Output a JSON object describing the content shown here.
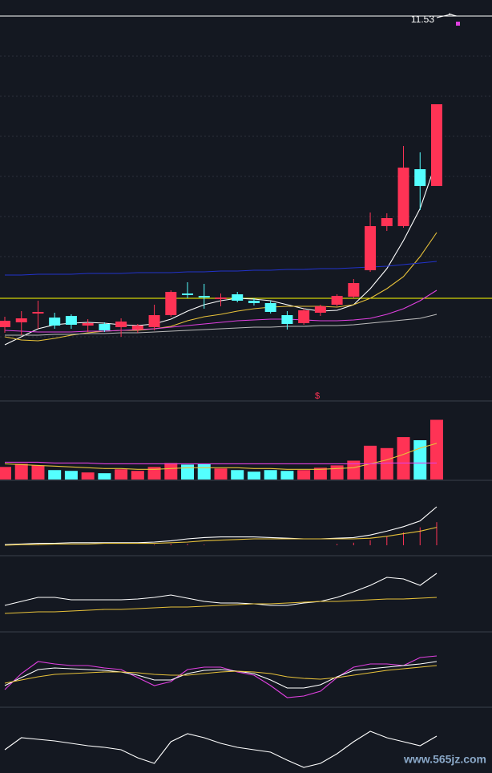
{
  "chart_data": [
    {
      "type": "candlestick",
      "open": [
        7.65,
        7.71,
        7.82,
        7.77,
        7.79,
        7.67,
        7.69,
        7.65,
        7.62,
        7.65,
        7.8,
        8.07,
        8.04,
        8.0,
        8.06,
        7.98,
        7.95,
        7.8,
        7.7,
        7.83,
        7.93,
        8.03,
        8.36,
        8.91,
        8.91,
        9.62,
        9.41
      ],
      "close": [
        7.73,
        7.76,
        7.84,
        7.67,
        7.68,
        7.7,
        7.61,
        7.72,
        7.67,
        7.8,
        8.09,
        8.05,
        8.02,
        8.02,
        7.98,
        7.95,
        7.84,
        7.69,
        7.86,
        7.91,
        8.04,
        8.2,
        8.91,
        9.01,
        9.64,
        9.41,
        10.43
      ],
      "high": [
        7.78,
        7.85,
        7.98,
        7.83,
        7.81,
        7.75,
        7.71,
        7.76,
        7.69,
        7.93,
        8.11,
        8.21,
        8.19,
        8.07,
        8.09,
        8.01,
        7.98,
        7.85,
        7.88,
        7.93,
        8.06,
        8.25,
        9.08,
        9.07,
        9.91,
        9.83,
        10.43
      ],
      "low": [
        7.58,
        7.55,
        7.63,
        7.63,
        7.63,
        7.59,
        7.59,
        7.53,
        7.58,
        7.61,
        7.78,
        8.01,
        7.88,
        7.91,
        7.96,
        7.92,
        7.82,
        7.62,
        7.68,
        7.79,
        7.91,
        8.01,
        8.34,
        8.85,
        8.89,
        9.11,
        9.41
      ],
      "up_color": "#ff3355",
      "down_color": "#54ffff",
      "ylim": [
        6.73,
        11.73
      ],
      "series": [
        {
          "color": "#ffffff",
          "values": [
            7.43,
            7.53,
            7.63,
            7.68,
            7.7,
            7.71,
            7.7,
            7.68,
            7.67,
            7.69,
            7.75,
            7.85,
            7.93,
            7.98,
            8.01,
            8.0,
            7.98,
            7.93,
            7.88,
            7.85,
            7.86,
            7.93,
            8.13,
            8.38,
            8.73,
            9.13,
            9.73
          ]
        },
        {
          "color": "#e8c23a",
          "values": [
            7.53,
            7.49,
            7.48,
            7.51,
            7.55,
            7.58,
            7.6,
            7.61,
            7.61,
            7.63,
            7.66,
            7.73,
            7.78,
            7.81,
            7.85,
            7.88,
            7.9,
            7.91,
            7.91,
            7.91,
            7.9,
            7.93,
            8.01,
            8.13,
            8.28,
            8.53,
            8.83
          ]
        },
        {
          "color": "#e040e0",
          "values": [
            7.61,
            7.6,
            7.59,
            7.59,
            7.59,
            7.6,
            7.6,
            7.61,
            7.62,
            7.63,
            7.65,
            7.67,
            7.69,
            7.71,
            7.73,
            7.74,
            7.75,
            7.75,
            7.74,
            7.73,
            7.73,
            7.74,
            7.76,
            7.81,
            7.88,
            7.98,
            8.11
          ]
        },
        {
          "color": "#bbbbbb",
          "values": [
            7.55,
            7.55,
            7.55,
            7.56,
            7.56,
            7.57,
            7.57,
            7.58,
            7.58,
            7.59,
            7.6,
            7.61,
            7.62,
            7.63,
            7.64,
            7.65,
            7.65,
            7.66,
            7.66,
            7.67,
            7.67,
            7.68,
            7.7,
            7.72,
            7.74,
            7.76,
            7.81
          ]
        },
        {
          "color": "#2233cc",
          "values": [
            8.3,
            8.3,
            8.31,
            8.31,
            8.31,
            8.32,
            8.32,
            8.32,
            8.33,
            8.33,
            8.33,
            8.34,
            8.34,
            8.35,
            8.35,
            8.36,
            8.36,
            8.37,
            8.37,
            8.38,
            8.38,
            8.39,
            8.4,
            8.41,
            8.43,
            8.45,
            8.47
          ]
        }
      ],
      "reference_lines": [
        {
          "value": 11.53,
          "color": "#ffffff"
        },
        {
          "value": 8.01,
          "color": "#ffff00"
        }
      ],
      "marker": "$"
    },
    {
      "type": "bar",
      "ylim": [
        0,
        100
      ],
      "values": [
        16,
        20,
        18,
        12,
        11,
        9,
        8,
        13,
        11,
        16,
        21,
        19,
        20,
        14,
        12,
        10,
        12,
        11,
        12,
        15,
        18,
        24,
        43,
        40,
        54,
        50,
        76
      ],
      "series": [
        {
          "color": "#e8c23a",
          "values": [
            20,
            19,
            18,
            17,
            16,
            15,
            14,
            14,
            13,
            13,
            14,
            15,
            15,
            15,
            15,
            14,
            14,
            13,
            13,
            13,
            14,
            15,
            20,
            25,
            32,
            40,
            46
          ]
        },
        {
          "color": "#e040e0",
          "values": [
            22,
            22,
            22,
            21,
            21,
            21,
            20,
            20,
            20,
            20,
            20,
            20,
            20,
            20,
            20,
            20,
            20,
            20,
            20,
            20,
            20,
            20,
            20,
            21,
            21,
            21,
            21
          ]
        }
      ]
    },
    {
      "type": "line",
      "ylim": [
        0,
        100
      ],
      "histogram": [
        0,
        0,
        1,
        0,
        0,
        0,
        0,
        0,
        0,
        1,
        2,
        2,
        1,
        0,
        0,
        0,
        0,
        0,
        0,
        0,
        2,
        4,
        8,
        14,
        20,
        28,
        36
      ],
      "histogram_color": "#ff3355",
      "series": [
        {
          "color": "#ffffff",
          "values": [
            1,
            2,
            3,
            3,
            4,
            4,
            4,
            4,
            4,
            5,
            7,
            10,
            12,
            13,
            13,
            13,
            12,
            11,
            10,
            10,
            11,
            12,
            16,
            22,
            29,
            38,
            60
          ]
        },
        {
          "color": "#e8c23a",
          "values": [
            0,
            1,
            1,
            2,
            2,
            2,
            3,
            3,
            3,
            3,
            4,
            5,
            7,
            8,
            9,
            10,
            10,
            10,
            10,
            10,
            10,
            10,
            11,
            14,
            18,
            22,
            28
          ]
        }
      ]
    },
    {
      "type": "line",
      "ylim": [
        0,
        90
      ],
      "series": [
        {
          "color": "#ffffff",
          "values": [
            30,
            35,
            40,
            40,
            37,
            37,
            37,
            37,
            38,
            40,
            43,
            39,
            35,
            33,
            33,
            32,
            30,
            30,
            33,
            35,
            40,
            47,
            55,
            65,
            63,
            55,
            70
          ]
        },
        {
          "color": "#e8c23a",
          "values": [
            20,
            21,
            22,
            22,
            23,
            24,
            25,
            25,
            26,
            27,
            28,
            28,
            29,
            30,
            31,
            32,
            32,
            33,
            34,
            35,
            35,
            36,
            37,
            38,
            38,
            39,
            40
          ]
        }
      ]
    },
    {
      "type": "line",
      "ylim": [
        0,
        90
      ],
      "series": [
        {
          "color": "#e040e0",
          "values": [
            20,
            40,
            55,
            52,
            50,
            50,
            47,
            45,
            35,
            25,
            30,
            45,
            48,
            48,
            42,
            38,
            25,
            10,
            12,
            18,
            35,
            48,
            52,
            52,
            50,
            60,
            62
          ]
        },
        {
          "color": "#ffffff",
          "values": [
            25,
            35,
            45,
            47,
            46,
            45,
            44,
            42,
            38,
            32,
            32,
            40,
            44,
            45,
            43,
            40,
            32,
            22,
            22,
            26,
            36,
            44,
            46,
            48,
            50,
            52,
            55
          ]
        },
        {
          "color": "#e8c23a",
          "values": [
            28,
            32,
            36,
            39,
            40,
            41,
            42,
            42,
            41,
            39,
            38,
            38,
            40,
            42,
            43,
            42,
            40,
            36,
            34,
            33,
            35,
            38,
            41,
            44,
            46,
            48,
            50
          ]
        }
      ]
    },
    {
      "type": "line",
      "ylim": [
        0,
        75
      ],
      "series": [
        {
          "color": "#ffffff",
          "values": [
            25,
            40,
            38,
            36,
            33,
            30,
            28,
            25,
            15,
            8,
            35,
            45,
            40,
            33,
            28,
            25,
            22,
            12,
            3,
            8,
            20,
            35,
            48,
            40,
            35,
            30,
            42
          ]
        }
      ]
    }
  ],
  "watermark": "www.565jz.com"
}
